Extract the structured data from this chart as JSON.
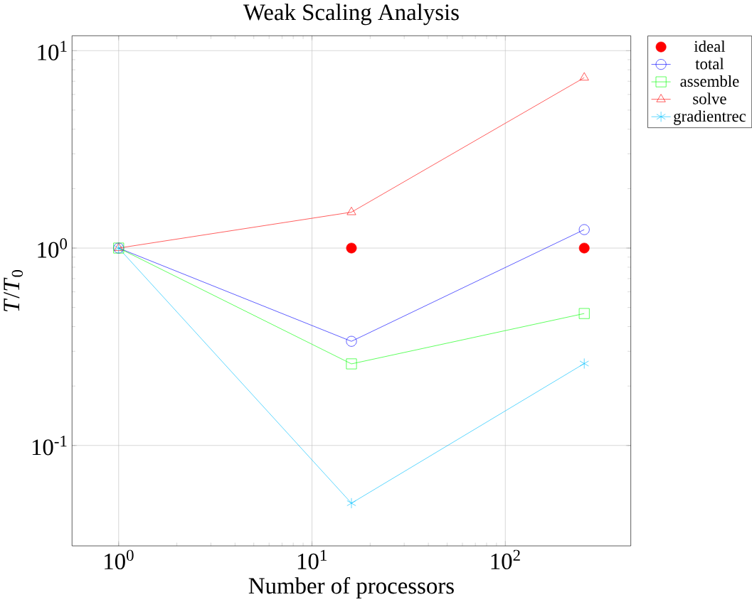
{
  "chart_data": {
    "type": "line",
    "title": "Weak Scaling Analysis",
    "xlabel": "Number of processors",
    "ylabel": "*T*/*T*$_{0}$",
    "x": [
      1,
      16,
      256
    ],
    "log": "xy",
    "grid": true,
    "legend": "right",
    "xlim": [
      0.574,
      445.7
    ],
    "ylim": [
      0.031,
      11.9
    ],
    "xticks": [
      {
        "value": 1,
        "label": "10$^{0}$"
      },
      {
        "value": 10,
        "label": "10$^{1}$"
      },
      {
        "value": 100,
        "label": "10$^{2}$"
      }
    ],
    "yticks": [
      {
        "value": 0.1,
        "label": "10$^{-1}$"
      },
      {
        "value": 1,
        "label": "10$^{0}$"
      },
      {
        "value": 10,
        "label": "10$^{1}$"
      }
    ],
    "series": [
      {
        "name": "ideal",
        "type": "scatter",
        "color": "#ff0000",
        "marker": "circle",
        "values": [
          null,
          1,
          1
        ]
      },
      {
        "name": "total",
        "color": "#0000ff",
        "marker": "circle",
        "values": [
          1,
          0.337,
          1.24
        ]
      },
      {
        "name": "assemble",
        "color": "#00ff00",
        "marker": "square",
        "values": [
          1,
          0.259,
          0.466
        ]
      },
      {
        "name": "solve",
        "color": "#ff0000",
        "marker": "triangle",
        "values": [
          1,
          1.52,
          7.3
        ]
      },
      {
        "name": "gradientrec",
        "color": "#00bfff",
        "marker": "cross",
        "values": [
          1,
          0.051,
          0.26
        ]
      }
    ]
  }
}
